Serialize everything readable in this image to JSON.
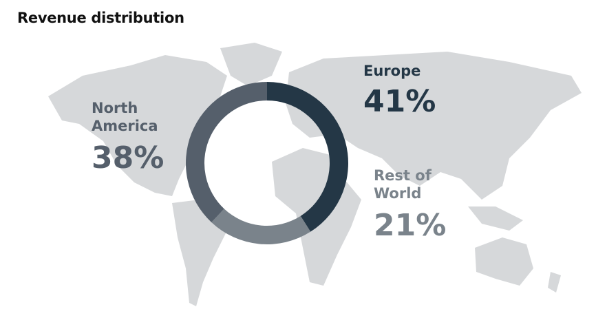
{
  "chart_data": {
    "type": "donut",
    "title": "Revenue distribution",
    "categories": [
      "Europe",
      "Rest of World",
      "North America"
    ],
    "values": [
      41,
      21,
      38
    ],
    "value_labels": [
      "41%",
      "21%",
      "38%"
    ],
    "colors": [
      "#243746",
      "#7a838b",
      "#555f6b"
    ]
  }
}
